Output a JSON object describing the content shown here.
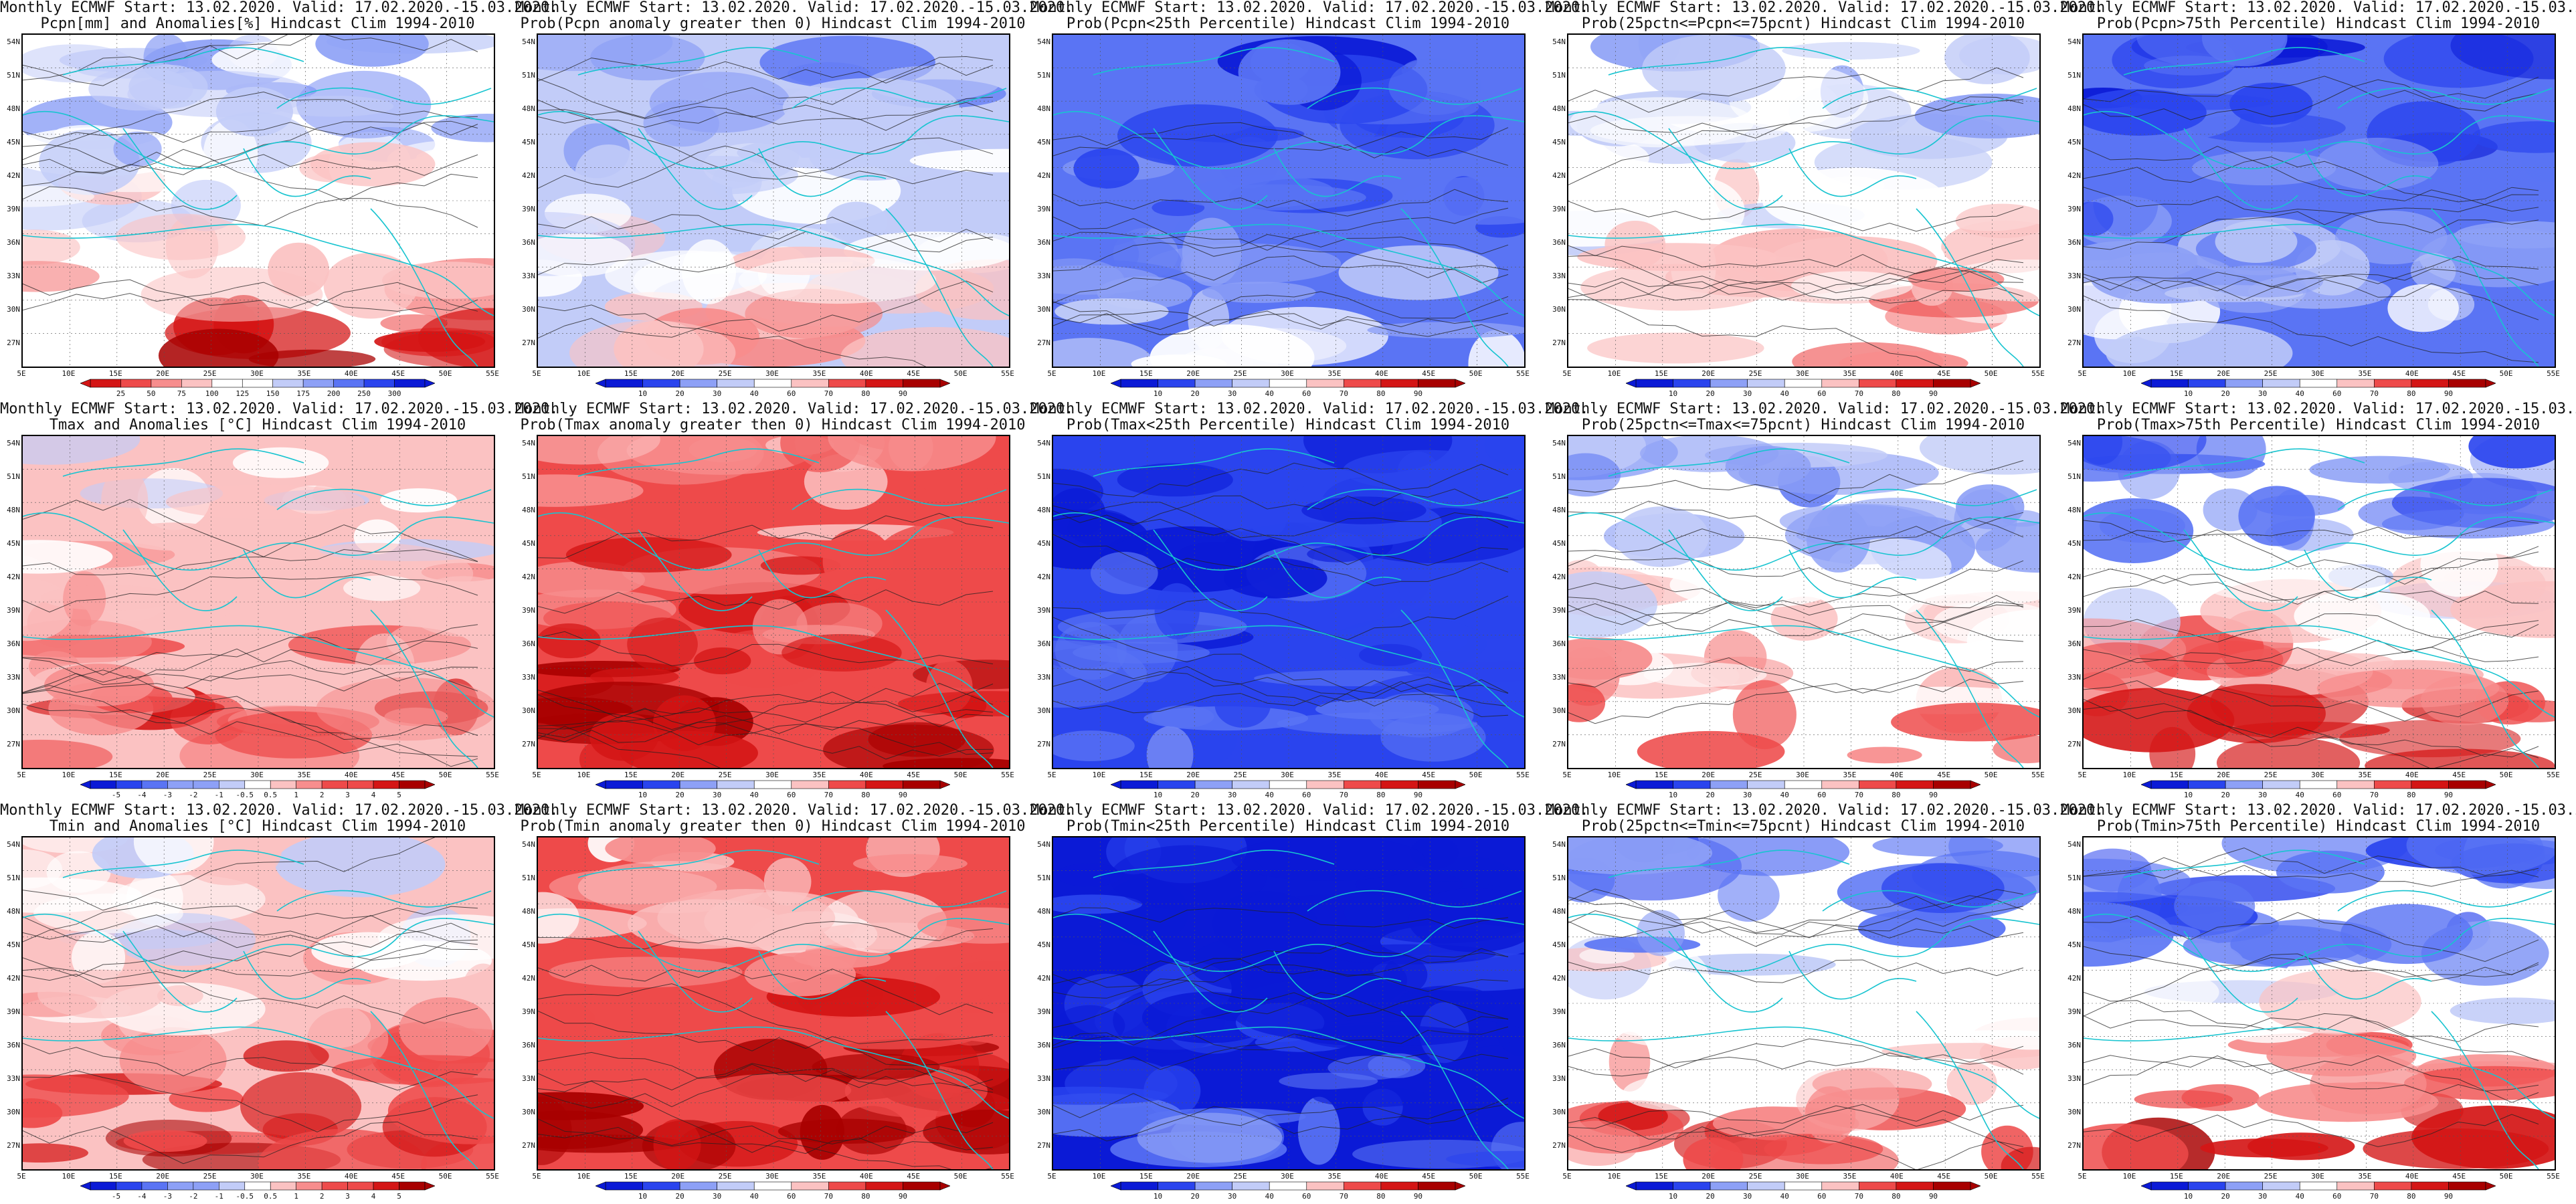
{
  "common": {
    "line1": "Monthly ECMWF Start: 13.02.2020. Valid: 17.02.2020.-15.03.2020.",
    "lat_labels": [
      "54N",
      "51N",
      "48N",
      "45N",
      "42N",
      "39N",
      "36N",
      "33N",
      "30N",
      "27N"
    ],
    "lon_labels": [
      "5E",
      "10E",
      "15E",
      "20E",
      "25E",
      "30E",
      "35E",
      "40E",
      "45E",
      "50E",
      "55E"
    ]
  },
  "panels": [
    {
      "id": "pcpn-anom",
      "line2": "Pcpn[mm] and Anomalies[%] Hindcast Clim 1994-2010",
      "palette": "anom-precip",
      "ticks": [
        "25",
        "50",
        "75",
        "100",
        "125",
        "150",
        "175",
        "200",
        "250",
        "300"
      ]
    },
    {
      "id": "pcpn-prob-gt0",
      "line2": "Prob(Pcpn anomaly greater then 0) Hindcast Clim 1994-2010",
      "palette": "prob",
      "ticks": [
        "10",
        "20",
        "30",
        "40",
        "60",
        "70",
        "80",
        "90"
      ]
    },
    {
      "id": "pcpn-prob-lt25",
      "line2": "Prob(Pcpn<25th Percentile) Hindcast Clim 1994-2010",
      "palette": "prob",
      "ticks": [
        "10",
        "20",
        "30",
        "40",
        "60",
        "70",
        "80",
        "90"
      ]
    },
    {
      "id": "pcpn-prob-mid",
      "line2": "Prob(25pctn<=Pcpn<=75pcnt) Hindcast Clim 1994-2010",
      "palette": "prob",
      "ticks": [
        "10",
        "20",
        "30",
        "40",
        "60",
        "70",
        "80",
        "90"
      ]
    },
    {
      "id": "pcpn-prob-gt75",
      "line2": "Prob(Pcpn>75th Percentile) Hindcast Clim 1994-2010",
      "palette": "prob",
      "ticks": [
        "10",
        "20",
        "30",
        "40",
        "60",
        "70",
        "80",
        "90"
      ]
    },
    {
      "id": "tmax-anom",
      "line2": "Tmax and Anomalies [°C] Hindcast Clim 1994-2010",
      "palette": "anom-temp",
      "ticks": [
        "-5",
        "-4",
        "-3",
        "-2",
        "-1",
        "-0.5",
        "0.5",
        "1",
        "2",
        "3",
        "4",
        "5"
      ]
    },
    {
      "id": "tmax-prob-gt0",
      "line2": "Prob(Tmax anomaly greater then 0) Hindcast Clim 1994-2010",
      "palette": "prob",
      "ticks": [
        "10",
        "20",
        "30",
        "40",
        "60",
        "70",
        "80",
        "90"
      ]
    },
    {
      "id": "tmax-prob-lt25",
      "line2": "Prob(Tmax<25th Percentile) Hindcast Clim 1994-2010",
      "palette": "prob",
      "ticks": [
        "10",
        "20",
        "30",
        "40",
        "60",
        "70",
        "80",
        "90"
      ]
    },
    {
      "id": "tmax-prob-mid",
      "line2": "Prob(25pctn<=Tmax<=75pcnt) Hindcast Clim 1994-2010",
      "palette": "prob",
      "ticks": [
        "10",
        "20",
        "30",
        "40",
        "60",
        "70",
        "80",
        "90"
      ]
    },
    {
      "id": "tmax-prob-gt75",
      "line2": "Prob(Tmax>75th Percentile) Hindcast Clim 1994-2010",
      "palette": "prob",
      "ticks": [
        "10",
        "20",
        "30",
        "40",
        "60",
        "70",
        "80",
        "90"
      ]
    },
    {
      "id": "tmin-anom",
      "line2": "Tmin and Anomalies [°C] Hindcast Clim 1994-2010",
      "palette": "anom-temp",
      "ticks": [
        "-5",
        "-4",
        "-3",
        "-2",
        "-1",
        "-0.5",
        "0.5",
        "1",
        "2",
        "3",
        "4",
        "5"
      ]
    },
    {
      "id": "tmin-prob-gt0",
      "line2": "Prob(Tmin anomaly greater then 0) Hindcast Clim 1994-2010",
      "palette": "prob",
      "ticks": [
        "10",
        "20",
        "30",
        "40",
        "60",
        "70",
        "80",
        "90"
      ]
    },
    {
      "id": "tmin-prob-lt25",
      "line2": "Prob(Tmin<25th Percentile) Hindcast Clim 1994-2010",
      "palette": "prob",
      "ticks": [
        "10",
        "20",
        "30",
        "40",
        "60",
        "70",
        "80",
        "90"
      ]
    },
    {
      "id": "tmin-prob-mid",
      "line2": "Prob(25pctn<=Tmin<=75pcnt) Hindcast Clim 1994-2010",
      "palette": "prob",
      "ticks": [
        "10",
        "20",
        "30",
        "40",
        "60",
        "70",
        "80",
        "90"
      ]
    },
    {
      "id": "tmin-prob-gt75",
      "line2": "Prob(Tmin>75th Percentile) Hindcast Clim 1994-2010",
      "palette": "prob",
      "ticks": [
        "10",
        "20",
        "30",
        "40",
        "60",
        "70",
        "80",
        "90"
      ]
    }
  ],
  "colors": {
    "scale": [
      "#0b1ad6",
      "#2a44ee",
      "#5a74f4",
      "#8da0f6",
      "#c2ccf8",
      "#ffffff",
      "#fbc2c2",
      "#f78d8d",
      "#ee4a4a",
      "#d41515",
      "#a80000"
    ],
    "coast": "#18c4d0",
    "contour": "#222222"
  }
}
